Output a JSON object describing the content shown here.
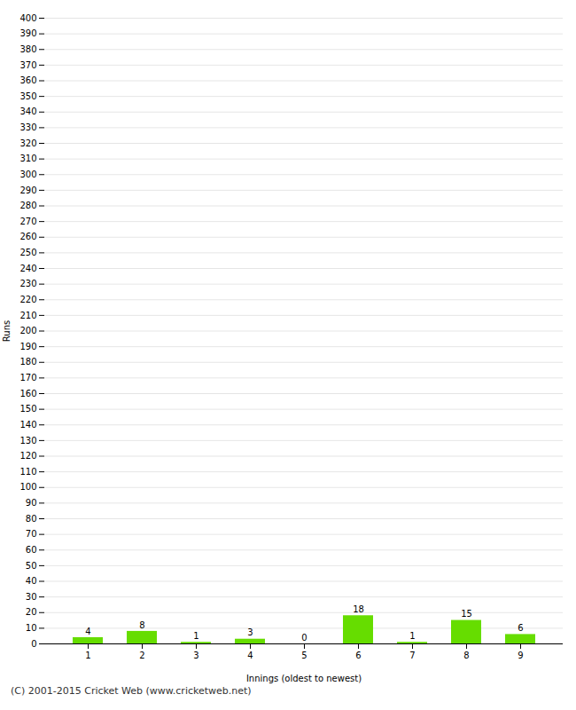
{
  "chart_data": {
    "type": "bar",
    "categories": [
      "1",
      "2",
      "3",
      "4",
      "5",
      "6",
      "7",
      "8",
      "9"
    ],
    "values": [
      4,
      8,
      1,
      3,
      0,
      18,
      1,
      15,
      6
    ],
    "color": "#66dd00",
    "xlabel": "Innings (oldest to newest)",
    "ylabel": "Runs",
    "ylim": [
      0,
      400
    ],
    "yticks": [
      0,
      10,
      20,
      30,
      40,
      50,
      60,
      70,
      80,
      90,
      100,
      110,
      120,
      130,
      140,
      150,
      160,
      170,
      180,
      190,
      200,
      210,
      220,
      230,
      240,
      250,
      260,
      270,
      280,
      290,
      300,
      310,
      320,
      330,
      340,
      350,
      360,
      370,
      380,
      390,
      400
    ],
    "grid": true,
    "data_labels": true,
    "annotations": [
      "(C) 2001-2015 Cricket Web (www.cricketweb.net)"
    ]
  }
}
